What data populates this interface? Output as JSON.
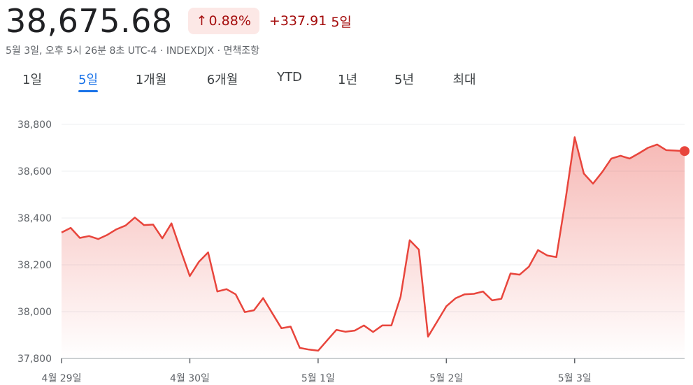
{
  "quote": {
    "price": "38,675.68",
    "change_pct": "0.88%",
    "change_abs": "+337.91",
    "change_period": "5일",
    "meta": "5월 3일, 오후 5시 26분 8초 UTC-4 · INDEXDJX · 면책조항"
  },
  "icons": {
    "change_direction": "arrow-up-icon"
  },
  "colors": {
    "line": "#e8453c",
    "tab_active": "#1a73e8",
    "badge_bg": "#fce8e6",
    "badge_text": "#a50e0e"
  },
  "tabs": [
    {
      "label": "1일",
      "active": false
    },
    {
      "label": "5일",
      "active": true
    },
    {
      "label": "1개월",
      "active": false
    },
    {
      "label": "6개월",
      "active": false
    },
    {
      "label": "YTD",
      "active": false
    },
    {
      "label": "1년",
      "active": false
    },
    {
      "label": "5년",
      "active": false
    },
    {
      "label": "최대",
      "active": false
    }
  ],
  "chart_data": {
    "type": "area",
    "ylim": [
      37800,
      38800
    ],
    "yticks": [
      37800,
      38000,
      38200,
      38400,
      38600,
      38800
    ],
    "ytick_labels": [
      "37,800",
      "38,000",
      "38,200",
      "38,400",
      "38,600",
      "38,800"
    ],
    "xticks": [
      {
        "label": "4월 29일",
        "index": 0
      },
      {
        "label": "4월 30일",
        "index": 14
      },
      {
        "label": "5월 1일",
        "index": 28
      },
      {
        "label": "5월 2일",
        "index": 42
      },
      {
        "label": "5월 3일",
        "index": 56
      }
    ],
    "grid": true,
    "series": [
      {
        "values": [
          38338,
          38358,
          38315,
          38323,
          38310,
          38328,
          38352,
          38368,
          38402,
          38370,
          38372,
          38313,
          38377,
          38263,
          38152,
          38213,
          38253,
          38086,
          38096,
          38074,
          37998,
          38006,
          38058,
          37993,
          37929,
          37936,
          37845,
          37838,
          37833,
          37878,
          37922,
          37914,
          37919,
          37941,
          37913,
          37941,
          37941,
          38063,
          38305,
          38265,
          37893,
          37958,
          38023,
          38057,
          38074,
          38076,
          38086,
          38048,
          38055,
          38163,
          38158,
          38192,
          38263,
          38240,
          38233,
          38478,
          38745,
          38590,
          38547,
          38596,
          38654,
          38666,
          38654,
          38676,
          38700,
          38714,
          38690,
          38688,
          38686
        ]
      }
    ]
  }
}
